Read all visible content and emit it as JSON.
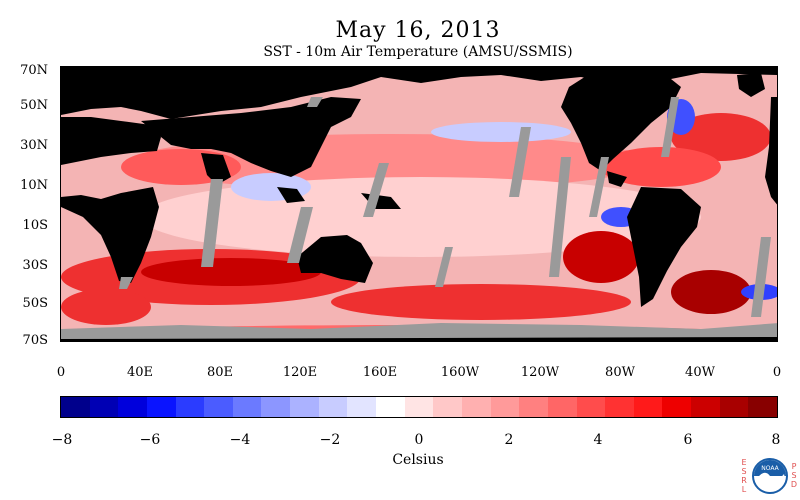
{
  "title": "May 16, 2013",
  "subtitle": "SST - 10m Air Temperature (AMSU/SSMIS)",
  "lat_labels": [
    "70N",
    "50N",
    "30N",
    "10N",
    "10S",
    "30S",
    "50S",
    "70S"
  ],
  "lon_labels": [
    "0",
    "40E",
    "80E",
    "120E",
    "160E",
    "160W",
    "120W",
    "80W",
    "40W",
    "0"
  ],
  "colorbar": {
    "title": "Celsius",
    "tick_labels": [
      "−8",
      "−6",
      "−4",
      "−2",
      "0",
      "2",
      "4",
      "6",
      "8"
    ],
    "colors": [
      "#00008c",
      "#0000b4",
      "#0000dc",
      "#0a14ff",
      "#2b3cff",
      "#4b5cff",
      "#6b7aff",
      "#8c96ff",
      "#abb2ff",
      "#c8ccff",
      "#e2e4ff",
      "#ffffff",
      "#ffe4e4",
      "#ffc8c8",
      "#ffb0b0",
      "#ff9a9a",
      "#ff8080",
      "#ff6666",
      "#ff4c4c",
      "#ff3232",
      "#ff1a1a",
      "#ee0000",
      "#cc0000",
      "#a80000",
      "#880000"
    ]
  },
  "logo": {
    "left_letters": [
      "E",
      "S",
      "R",
      "L"
    ],
    "right_letters": [
      "P",
      "S",
      "D"
    ],
    "badge_text": "NOAA"
  },
  "map_colors": {
    "land": "#000000",
    "no_data": "#9a9a9a",
    "ice": "#a0a0a0",
    "warm_strong": "#c00000",
    "warm": "#ff4a4a",
    "warm_light": "#ff9a9a",
    "cool_light": "#c8ccff",
    "cool": "#5060ff"
  }
}
